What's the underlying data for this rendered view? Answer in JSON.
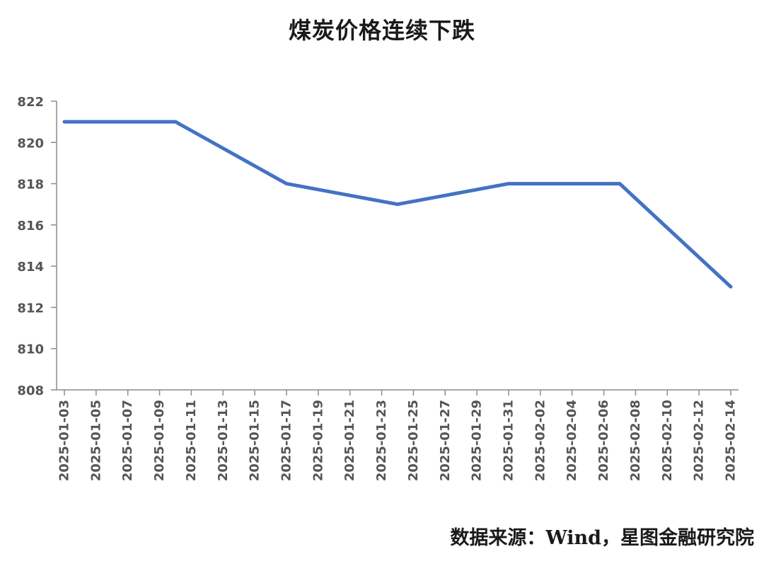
{
  "chart_data": {
    "type": "line",
    "title": "煤炭价格连续下跌",
    "xlabel": "",
    "ylabel": "",
    "x_tick_labels": [
      "2025-01-03",
      "2025-01-05",
      "2025-01-07",
      "2025-01-09",
      "2025-01-11",
      "2025-01-13",
      "2025-01-15",
      "2025-01-17",
      "2025-01-19",
      "2025-01-21",
      "2025-01-23",
      "2025-01-25",
      "2025-01-27",
      "2025-01-29",
      "2025-01-31",
      "2025-02-02",
      "2025-02-04",
      "2025-02-06",
      "2025-02-08",
      "2025-02-10",
      "2025-02-12",
      "2025-02-14"
    ],
    "y_ticks": [
      808,
      810,
      812,
      814,
      816,
      818,
      820,
      822
    ],
    "ylim": [
      808,
      822
    ],
    "xlim": [
      "2025-01-03",
      "2025-02-14"
    ],
    "grid": false,
    "legend": "none",
    "series": [
      {
        "color": "#4472C4",
        "points": [
          {
            "x": "2025-01-03",
            "y": 821
          },
          {
            "x": "2025-01-10",
            "y": 821
          },
          {
            "x": "2025-01-17",
            "y": 818
          },
          {
            "x": "2025-01-24",
            "y": 817
          },
          {
            "x": "2025-01-31",
            "y": 818
          },
          {
            "x": "2025-02-07",
            "y": 818
          },
          {
            "x": "2025-02-14",
            "y": 813
          }
        ]
      }
    ]
  },
  "source": "数据来源：Wind，星图金融研究院"
}
